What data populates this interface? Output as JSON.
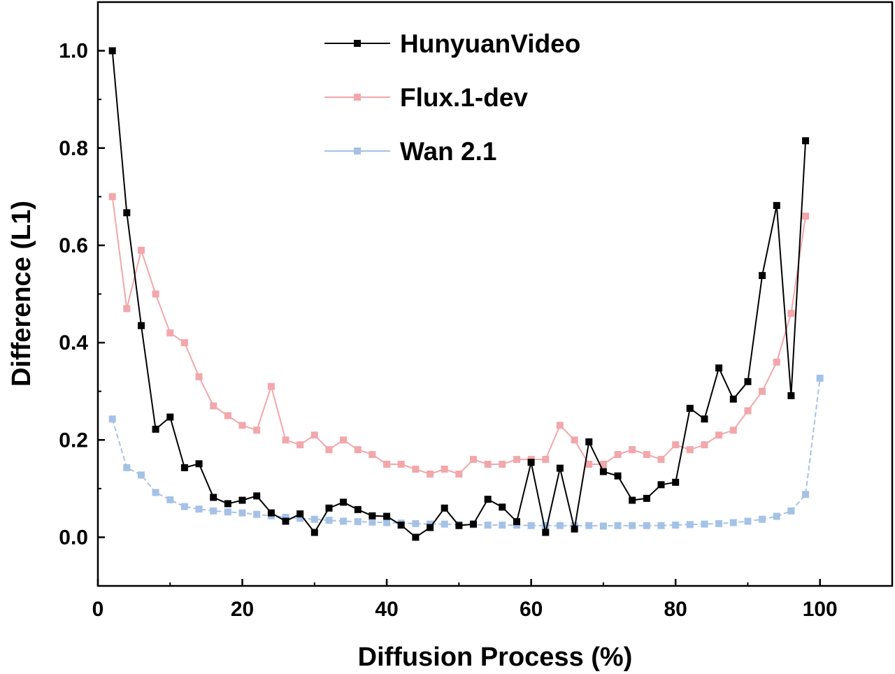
{
  "chart_data": {
    "type": "line",
    "xlabel": "Diffusion Process (%)",
    "ylabel": "Difference (L1)",
    "xlim": [
      0,
      110
    ],
    "ylim": [
      -0.1,
      1.1
    ],
    "xticks": [
      0,
      20,
      40,
      60,
      80,
      100
    ],
    "xtick_labels": [
      "0",
      "20",
      "40",
      "60",
      "80",
      "100"
    ],
    "yticks": [
      0.0,
      0.2,
      0.4,
      0.6,
      0.8,
      1.0
    ],
    "ytick_labels": [
      "0.0",
      "0.2",
      "0.4",
      "0.6",
      "0.8",
      "1.0"
    ],
    "grid": false,
    "legend_position": "top-center",
    "series": [
      {
        "name": "HunyuanVideo",
        "color": "#000000",
        "marker": "square",
        "dashed": false,
        "x": [
          2,
          4,
          6,
          8,
          10,
          12,
          14,
          16,
          18,
          20,
          22,
          24,
          26,
          28,
          30,
          32,
          34,
          36,
          38,
          40,
          42,
          44,
          46,
          48,
          50,
          52,
          54,
          56,
          58,
          60,
          62,
          64,
          66,
          68,
          70,
          72,
          74,
          76,
          78,
          80,
          82,
          84,
          86,
          88,
          90,
          92,
          94,
          96,
          98
        ],
        "y": [
          1.0,
          0.667,
          0.435,
          0.222,
          0.247,
          0.143,
          0.151,
          0.082,
          0.069,
          0.076,
          0.085,
          0.05,
          0.033,
          0.048,
          0.01,
          0.06,
          0.072,
          0.057,
          0.044,
          0.043,
          0.025,
          0.0,
          0.02,
          0.06,
          0.024,
          0.027,
          0.078,
          0.062,
          0.032,
          0.154,
          0.01,
          0.142,
          0.017,
          0.196,
          0.135,
          0.126,
          0.076,
          0.08,
          0.108,
          0.113,
          0.265,
          0.243,
          0.348,
          0.284,
          0.32,
          0.538,
          0.682,
          0.291,
          0.815
        ]
      },
      {
        "name": "Flux.1-dev",
        "color": "#f2a7ab",
        "marker": "square",
        "dashed": false,
        "x": [
          2,
          4,
          6,
          8,
          10,
          12,
          14,
          16,
          18,
          20,
          22,
          24,
          26,
          28,
          30,
          32,
          34,
          36,
          38,
          40,
          42,
          44,
          46,
          48,
          50,
          52,
          54,
          56,
          58,
          60,
          62,
          64,
          66,
          68,
          70,
          72,
          74,
          76,
          78,
          80,
          82,
          84,
          86,
          88,
          90,
          92,
          94,
          96,
          98
        ],
        "y": [
          0.7,
          0.47,
          0.59,
          0.5,
          0.42,
          0.4,
          0.33,
          0.27,
          0.25,
          0.23,
          0.22,
          0.31,
          0.2,
          0.19,
          0.21,
          0.18,
          0.2,
          0.18,
          0.17,
          0.15,
          0.15,
          0.14,
          0.13,
          0.14,
          0.13,
          0.16,
          0.15,
          0.15,
          0.16,
          0.16,
          0.16,
          0.23,
          0.2,
          0.15,
          0.15,
          0.17,
          0.18,
          0.17,
          0.16,
          0.19,
          0.18,
          0.19,
          0.21,
          0.22,
          0.26,
          0.3,
          0.36,
          0.46,
          0.66
        ]
      },
      {
        "name": "Wan 2.1",
        "color": "#a4c2e6",
        "marker": "square",
        "dashed": true,
        "x": [
          2,
          4,
          6,
          8,
          10,
          12,
          14,
          16,
          18,
          20,
          22,
          24,
          26,
          28,
          30,
          32,
          34,
          36,
          38,
          40,
          42,
          44,
          46,
          48,
          50,
          52,
          54,
          56,
          58,
          60,
          62,
          64,
          66,
          68,
          70,
          72,
          74,
          76,
          78,
          80,
          82,
          84,
          86,
          88,
          90,
          92,
          94,
          96,
          98,
          100
        ],
        "y": [
          0.243,
          0.143,
          0.128,
          0.092,
          0.077,
          0.063,
          0.058,
          0.054,
          0.052,
          0.05,
          0.047,
          0.044,
          0.041,
          0.039,
          0.037,
          0.035,
          0.033,
          0.032,
          0.031,
          0.03,
          0.029,
          0.028,
          0.027,
          0.027,
          0.026,
          0.026,
          0.025,
          0.025,
          0.025,
          0.024,
          0.024,
          0.024,
          0.024,
          0.024,
          0.023,
          0.024,
          0.024,
          0.024,
          0.024,
          0.025,
          0.026,
          0.027,
          0.028,
          0.03,
          0.033,
          0.037,
          0.043,
          0.054,
          0.088,
          0.327
        ]
      }
    ]
  }
}
